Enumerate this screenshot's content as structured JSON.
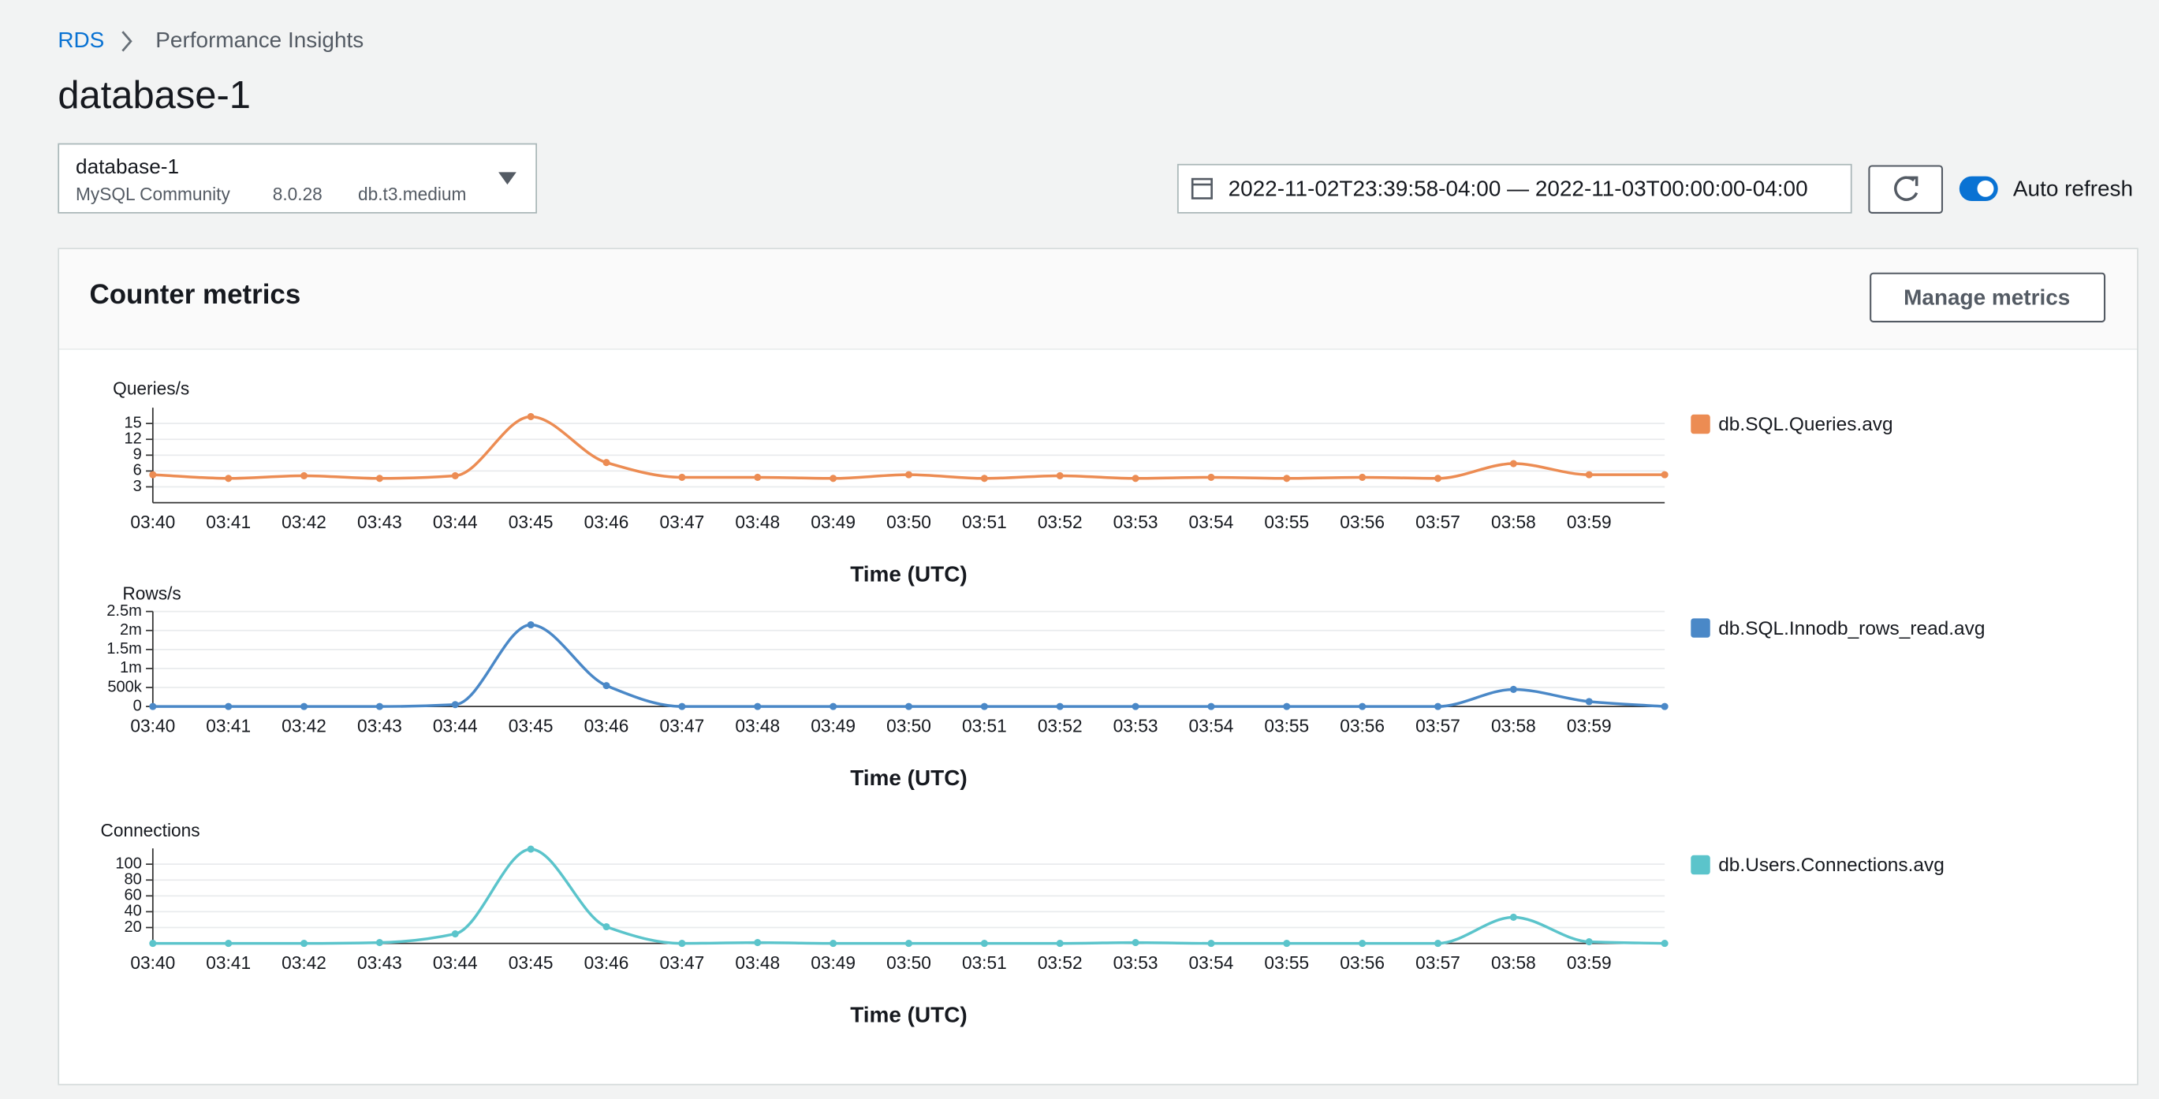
{
  "breadcrumb": [
    "RDS",
    "Performance Insights"
  ],
  "title": "database-1",
  "instance_selector": {
    "name": "database-1",
    "engine": "MySQL Community",
    "version": "8.0.28",
    "class": "db.t3.medium"
  },
  "time_range": "2022-11-02T23:39:58-04:00 — 2022-11-03T00:00:00-04:00",
  "auto_refresh_label": "Auto refresh",
  "panel": {
    "title": "Counter metrics",
    "button": "Manage metrics"
  },
  "chart_data": [
    {
      "type": "line",
      "y_label": "Queries/s",
      "x_label": "Time (UTC)",
      "categories": [
        "03:40",
        "03:41",
        "03:42",
        "03:43",
        "03:44",
        "03:45",
        "03:46",
        "03:47",
        "03:48",
        "03:49",
        "03:50",
        "03:51",
        "03:52",
        "03:53",
        "03:54",
        "03:55",
        "03:56",
        "03:57",
        "03:58",
        "03:59",
        null
      ],
      "series": [
        {
          "name": "db.SQL.Queries.avg",
          "color": "#ec8c53",
          "values": [
            5.3,
            4.6,
            5.1,
            4.6,
            5.1,
            16.3,
            7.6,
            4.8,
            4.8,
            4.6,
            5.3,
            4.6,
            5.1,
            4.6,
            4.8,
            4.6,
            4.8,
            4.6,
            7.4,
            5.3,
            5.3
          ]
        }
      ],
      "ylim": [
        0,
        18
      ],
      "yticks": [
        3,
        6,
        9,
        12,
        15
      ],
      "grid": true
    },
    {
      "type": "line",
      "y_label": "Rows/s",
      "x_label": "Time (UTC)",
      "categories": [
        "03:40",
        "03:41",
        "03:42",
        "03:43",
        "03:44",
        "03:45",
        "03:46",
        "03:47",
        "03:48",
        "03:49",
        "03:50",
        "03:51",
        "03:52",
        "03:53",
        "03:54",
        "03:55",
        "03:56",
        "03:57",
        "03:58",
        "03:59",
        null
      ],
      "series": [
        {
          "name": "db.SQL.Innodb_rows_read.avg",
          "color": "#4a88c7",
          "values": [
            0,
            0,
            0,
            0,
            50000,
            2150000,
            550000,
            0,
            0,
            0,
            0,
            0,
            0,
            0,
            0,
            0,
            0,
            0,
            450000,
            130000,
            0
          ]
        }
      ],
      "ylim": [
        0,
        2500000
      ],
      "yticks": [
        0,
        {
          "value": 500000,
          "label": "500k"
        },
        {
          "value": 1000000,
          "label": "1m"
        },
        {
          "value": 1500000,
          "label": "1.5m"
        },
        {
          "value": 2000000,
          "label": "2m"
        },
        {
          "value": 2500000,
          "label": "2.5m"
        }
      ],
      "grid": true
    },
    {
      "type": "line",
      "y_label": "Connections",
      "x_label": "Time (UTC)",
      "categories": [
        "03:40",
        "03:41",
        "03:42",
        "03:43",
        "03:44",
        "03:45",
        "03:46",
        "03:47",
        "03:48",
        "03:49",
        "03:50",
        "03:51",
        "03:52",
        "03:53",
        "03:54",
        "03:55",
        "03:56",
        "03:57",
        "03:58",
        "03:59",
        null
      ],
      "series": [
        {
          "name": "db.Users.Connections.avg",
          "color": "#5bc4cb",
          "values": [
            0,
            0,
            0,
            1,
            12,
            119,
            21,
            0,
            1,
            0,
            0,
            0,
            0,
            1,
            0,
            0,
            0,
            0,
            33,
            2,
            0
          ]
        }
      ],
      "ylim": [
        0,
        120
      ],
      "yticks": [
        20,
        40,
        60,
        80,
        100
      ],
      "grid": true
    }
  ]
}
